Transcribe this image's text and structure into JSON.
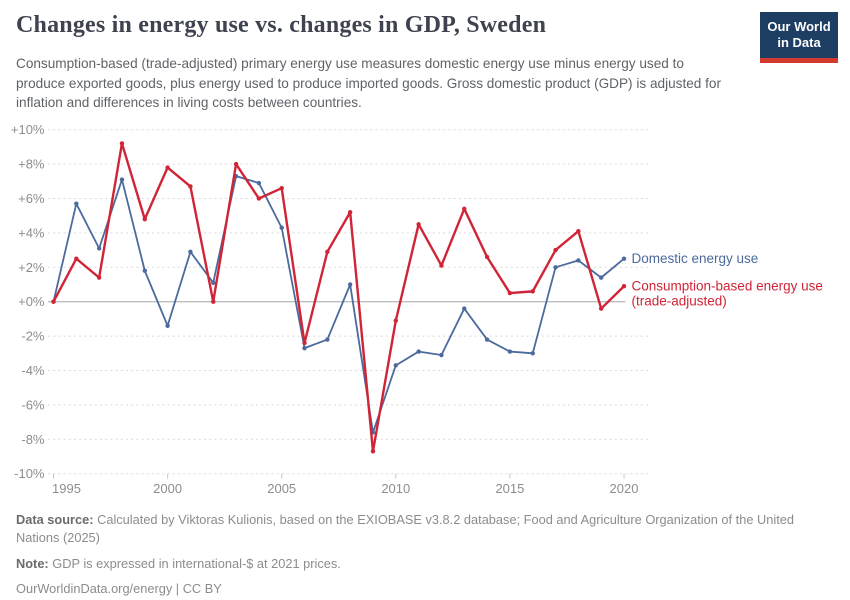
{
  "header": {
    "title": "Changes in energy use vs. changes in GDP, Sweden",
    "subtitle": "Consumption-based (trade-adjusted) primary energy use measures domestic energy use minus energy used to produce exported goods, plus energy used to produce imported goods. Gross domestic product (GDP) is adjusted for inflation and differences in living costs between countries.",
    "logo": {
      "line1": "Our World",
      "line2": "in Data"
    }
  },
  "chart_data": {
    "type": "line",
    "title": "Changes in energy use vs. changes in GDP, Sweden",
    "x": [
      1995,
      1996,
      1997,
      1998,
      1999,
      2000,
      2001,
      2002,
      2003,
      2004,
      2005,
      2006,
      2007,
      2008,
      2009,
      2010,
      2011,
      2012,
      2013,
      2014,
      2015,
      2016,
      2017,
      2018,
      2019,
      2020
    ],
    "series": [
      {
        "name": "Domestic energy use",
        "slug": "domestic-energy-use",
        "label_lines": [
          "Domestic energy use"
        ],
        "color": "#4c6a9c",
        "width": 1.8,
        "values": [
          0.0,
          5.7,
          3.1,
          7.1,
          1.8,
          -1.4,
          2.9,
          1.1,
          7.3,
          6.9,
          4.3,
          -2.7,
          -2.2,
          1.0,
          -7.6,
          -3.7,
          -2.9,
          -3.1,
          -0.4,
          -2.2,
          -2.9,
          -3.0,
          2.0,
          2.4,
          1.4,
          2.5
        ]
      },
      {
        "name": "Consumption-based energy use (trade-adjusted)",
        "slug": "consumption-based-energy-use",
        "label_lines": [
          "Consumption-based energy use",
          "(trade-adjusted)"
        ],
        "color": "#d02437",
        "width": 2.4,
        "values": [
          0.0,
          2.5,
          1.4,
          9.2,
          4.8,
          7.8,
          6.7,
          0.0,
          8.0,
          6.0,
          6.6,
          -2.4,
          2.9,
          5.2,
          -8.7,
          -1.1,
          4.5,
          2.1,
          5.4,
          2.6,
          0.5,
          0.6,
          3.0,
          4.1,
          -0.4,
          0.9
        ]
      }
    ],
    "ylim": [
      -10,
      10
    ],
    "ytick_step": 2,
    "ytick_suffix": "%",
    "xticks": [
      1995,
      2000,
      2005,
      2010,
      2015,
      2020
    ],
    "grid": "horizontal-dashed",
    "legend_position": "right-of-line-end",
    "colors": {
      "grid": "#d9d9d9",
      "zero_line": "#a6a6a6",
      "tick": "#c8c8c8",
      "axis_label": "#8d8d8d"
    }
  },
  "footer": {
    "datasource_label": "Data source:",
    "datasource_text": " Calculated by Viktoras Kulionis, based on the EXIOBASE v3.8.2 database; Food and Agriculture Organization of the United Nations (2025)",
    "note_label": "Note:",
    "note_text": " GDP is expressed in international-$ at 2021 prices.",
    "link": "OurWorldinData.org/energy",
    "divider": " | ",
    "license": "CC BY"
  }
}
